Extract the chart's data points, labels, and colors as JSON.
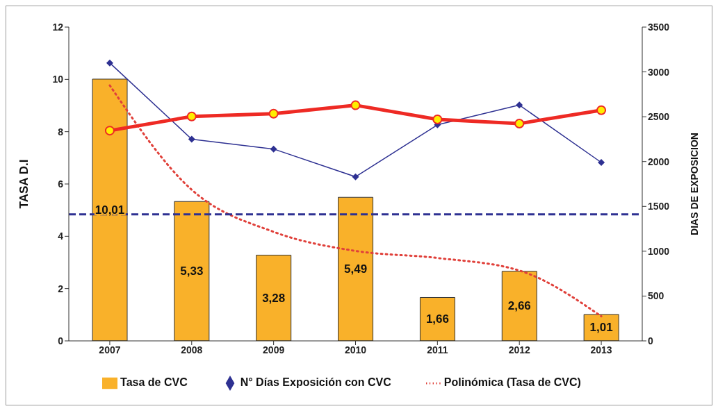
{
  "chart_data": {
    "type": "bar",
    "categories": [
      "2007",
      "2008",
      "2009",
      "2010",
      "2011",
      "2012",
      "2013"
    ],
    "series": [
      {
        "name": "Tasa de CVC",
        "color": "#f9b12a",
        "values": [
          10.01,
          5.33,
          3.28,
          5.49,
          1.66,
          2.66,
          1.01
        ],
        "value_labels": [
          "10,01",
          "5,33",
          "3,28",
          "5,49",
          "1,66",
          "2,66",
          "1,01"
        ]
      },
      {
        "name": "N° Días Exposición con CVC",
        "type": "line",
        "axis": "y2",
        "color": "#2e3192",
        "marker": "diamond",
        "line_style": "solid",
        "values": [
          3100,
          2250,
          2140,
          1830,
          2410,
          2630,
          1990
        ]
      },
      {
        "name": "Polinómica (Tasa de CVC)",
        "type": "line",
        "color": "#e0403a",
        "marker": "none",
        "line_style": "dotted",
        "values": [
          9.77,
          5.78,
          4.17,
          3.44,
          3.17,
          2.69,
          0.94
        ]
      },
      {
        "type": "line",
        "color": "#ee2a24",
        "marker": "circle",
        "line_style": "solid",
        "values": [
          8.04,
          8.58,
          8.69,
          9.01,
          8.47,
          8.31,
          8.82
        ]
      }
    ],
    "ylabel": "TASA D.I",
    "y2label": "DIAS DE EXPOSICION",
    "ylim": [
      0,
      12
    ],
    "yticks": [
      0,
      2,
      4,
      6,
      8,
      10,
      12
    ],
    "y2lim": [
      0,
      3500
    ],
    "y2ticks": [
      0,
      500,
      1000,
      1500,
      2000,
      2500,
      3000,
      3500
    ],
    "ref_lines": [
      {
        "axis": "y",
        "value": 4.84,
        "color": "#2e3192",
        "line_style": "dashed"
      }
    ],
    "legend": "bottom"
  }
}
